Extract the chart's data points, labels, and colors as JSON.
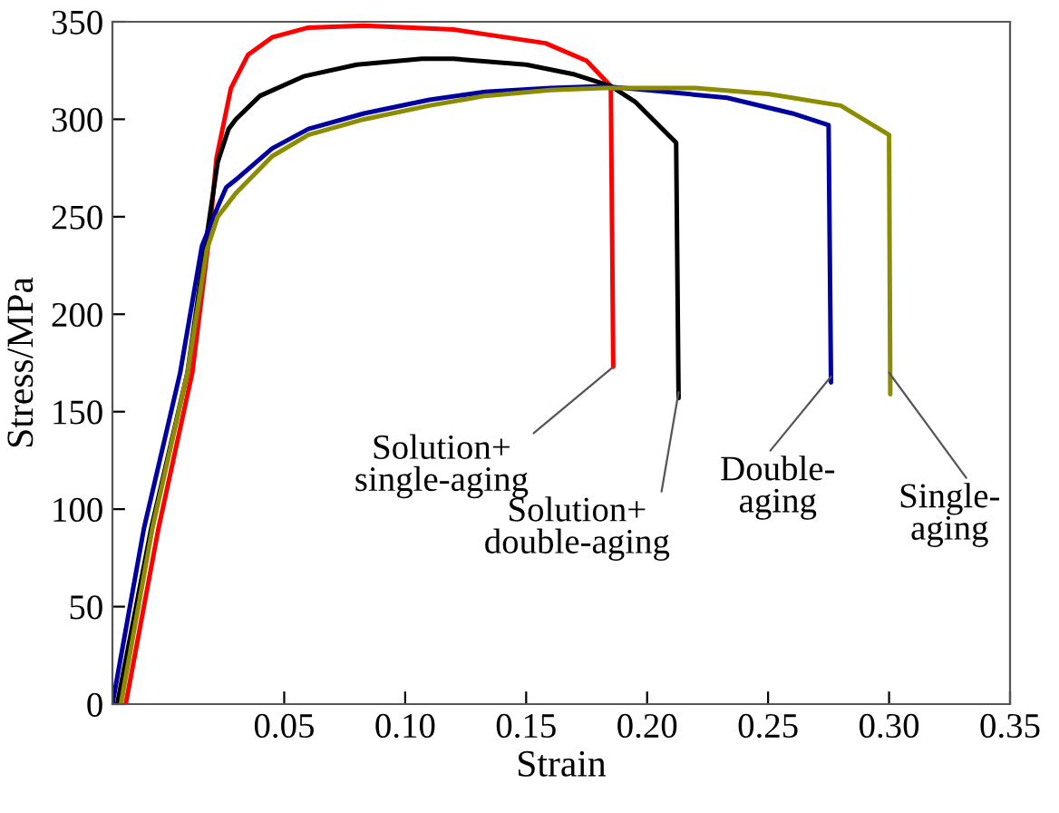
{
  "chart_data": {
    "type": "line",
    "xlabel": "Strain",
    "ylabel": "Stress/MPa",
    "xlim": [
      -0.021,
      0.35
    ],
    "ylim": [
      0,
      350
    ],
    "xticks": [
      {
        "value": 0.05,
        "label": "0.05"
      },
      {
        "value": 0.1,
        "label": "0.10"
      },
      {
        "value": 0.15,
        "label": "0.15"
      },
      {
        "value": 0.2,
        "label": "0.20"
      },
      {
        "value": 0.25,
        "label": "0.25"
      },
      {
        "value": 0.3,
        "label": "0.30"
      },
      {
        "value": 0.35,
        "label": "0.35"
      }
    ],
    "yticks": [
      0,
      50,
      100,
      150,
      200,
      250,
      300,
      350
    ],
    "marker": "none",
    "line_style": "solid",
    "series": [
      {
        "color": "#ff0000",
        "x": [
          -0.0155,
          -0.002,
          0.012,
          0.019,
          0.022,
          0.028,
          0.035,
          0.045,
          0.06,
          0.083,
          0.12,
          0.158,
          0.175,
          0.185,
          0.186
        ],
        "values": [
          0,
          90,
          170,
          240,
          280,
          316,
          333,
          342,
          347,
          348,
          346,
          339,
          330,
          317,
          173
        ]
      },
      {
        "color": "#000000",
        "x": [
          -0.019,
          -0.005,
          0.01,
          0.018,
          0.0225,
          0.027,
          0.03,
          0.04,
          0.058,
          0.08,
          0.107,
          0.12,
          0.15,
          0.17,
          0.185,
          0.195,
          0.212,
          0.213
        ],
        "values": [
          0,
          90,
          170,
          240,
          278,
          295,
          300,
          312,
          322,
          328,
          331,
          331,
          328,
          323,
          317,
          309,
          288,
          157
        ]
      },
      {
        "color": "#0000a0",
        "x": [
          -0.021,
          -0.008,
          0.007,
          0.016,
          0.0225,
          0.026,
          0.03,
          0.045,
          0.06,
          0.083,
          0.11,
          0.133,
          0.16,
          0.182,
          0.2,
          0.233,
          0.26,
          0.275,
          0.276
        ],
        "values": [
          0,
          90,
          170,
          235,
          255,
          265,
          269,
          285,
          295,
          303,
          310,
          314,
          316,
          317,
          315,
          311,
          303,
          297,
          165
        ]
      },
      {
        "color": "#8c8c00",
        "x": [
          -0.0175,
          -0.0045,
          0.01,
          0.018,
          0.0225,
          0.03,
          0.045,
          0.06,
          0.083,
          0.11,
          0.133,
          0.16,
          0.182,
          0.22,
          0.25,
          0.28,
          0.3,
          0.3005
        ],
        "values": [
          0,
          90,
          170,
          233,
          250,
          262,
          281,
          292,
          300,
          307,
          312,
          315,
          316,
          316,
          313,
          307,
          292,
          159
        ]
      }
    ],
    "annotations": [
      {
        "text": "Solution+\nsingle-aging",
        "x": 0.186,
        "y": 173
      },
      {
        "text": "Solution+\ndouble-aging",
        "x": 0.213,
        "y": 160
      },
      {
        "text": "Double-\naging",
        "x": 0.276,
        "y": 168
      },
      {
        "text": "Single-\naging",
        "x": 0.3,
        "y": 170
      }
    ]
  }
}
